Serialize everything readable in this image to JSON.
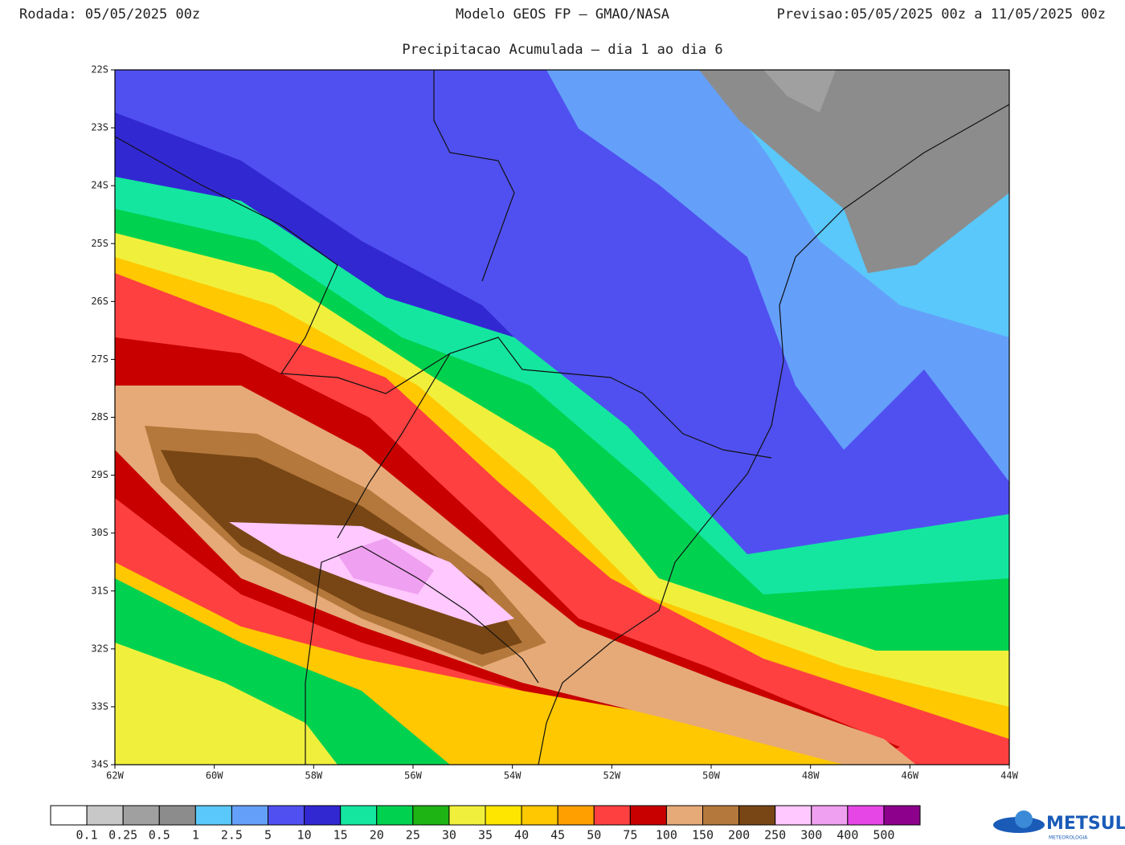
{
  "header": {
    "left": "Rodada: 05/05/2025 00z",
    "center": "Modelo GEOS FP — GMAO/NASA",
    "right": "Previsao:05/05/2025 00z a 11/05/2025 00z",
    "subtitle": "Precipitacao Acumulada — dia 1 ao dia 6"
  },
  "map": {
    "lat_labels": [
      "22S",
      "23S",
      "24S",
      "25S",
      "26S",
      "27S",
      "28S",
      "29S",
      "30S",
      "31S",
      "32S",
      "33S",
      "34S"
    ],
    "lon_labels": [
      "62W",
      "60W",
      "58W",
      "56W",
      "54W",
      "52W",
      "50W",
      "48W",
      "46W",
      "44W"
    ]
  },
  "legend": {
    "colors": [
      "#ffffff",
      "#c8c8c8",
      "#a0a0a0",
      "#8c8c8c",
      "#5ac8fa",
      "#64a0fa",
      "#5050f0",
      "#3228d2",
      "#14e6a0",
      "#00d250",
      "#1eb414",
      "#f0f03c",
      "#ffe600",
      "#ffc800",
      "#ffa000",
      "#ff4040",
      "#c80000",
      "#e6aa78",
      "#b4783c",
      "#784614",
      "#ffc8ff",
      "#f0a0f0",
      "#e646e6",
      "#8c008c"
    ],
    "bounds": [
      0.1,
      0.25,
      0.5,
      1,
      2.5,
      5,
      10,
      15,
      20,
      25,
      30,
      35,
      40,
      45,
      50,
      75,
      100,
      150,
      200,
      250,
      300,
      400,
      500
    ]
  },
  "logo": {
    "name": "METSUL",
    "tagline": "METEOROLOGIA"
  }
}
